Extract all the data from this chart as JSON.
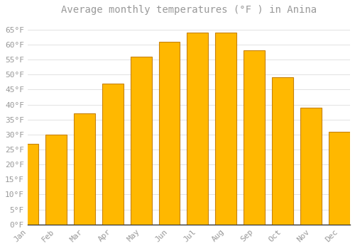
{
  "title": "Average monthly temperatures (°F ) in Anina",
  "months": [
    "Jan",
    "Feb",
    "Mar",
    "Apr",
    "May",
    "Jun",
    "Jul",
    "Aug",
    "Sep",
    "Oct",
    "Nov",
    "Dec"
  ],
  "values": [
    27,
    30,
    37,
    47,
    56,
    61,
    64,
    64,
    58,
    49,
    39,
    31
  ],
  "bar_color_center": "#FFB800",
  "bar_color_edge": "#F0A000",
  "bar_border_color": "#C8820A",
  "background_color": "#FFFFFF",
  "plot_bg_color": "#FFFFFF",
  "grid_color": "#DDDDDD",
  "text_color": "#999999",
  "axis_color": "#333333",
  "ylim": [
    0,
    68
  ],
  "yticks": [
    0,
    5,
    10,
    15,
    20,
    25,
    30,
    35,
    40,
    45,
    50,
    55,
    60,
    65
  ],
  "title_fontsize": 10,
  "tick_fontsize": 8,
  "bar_width": 0.75
}
